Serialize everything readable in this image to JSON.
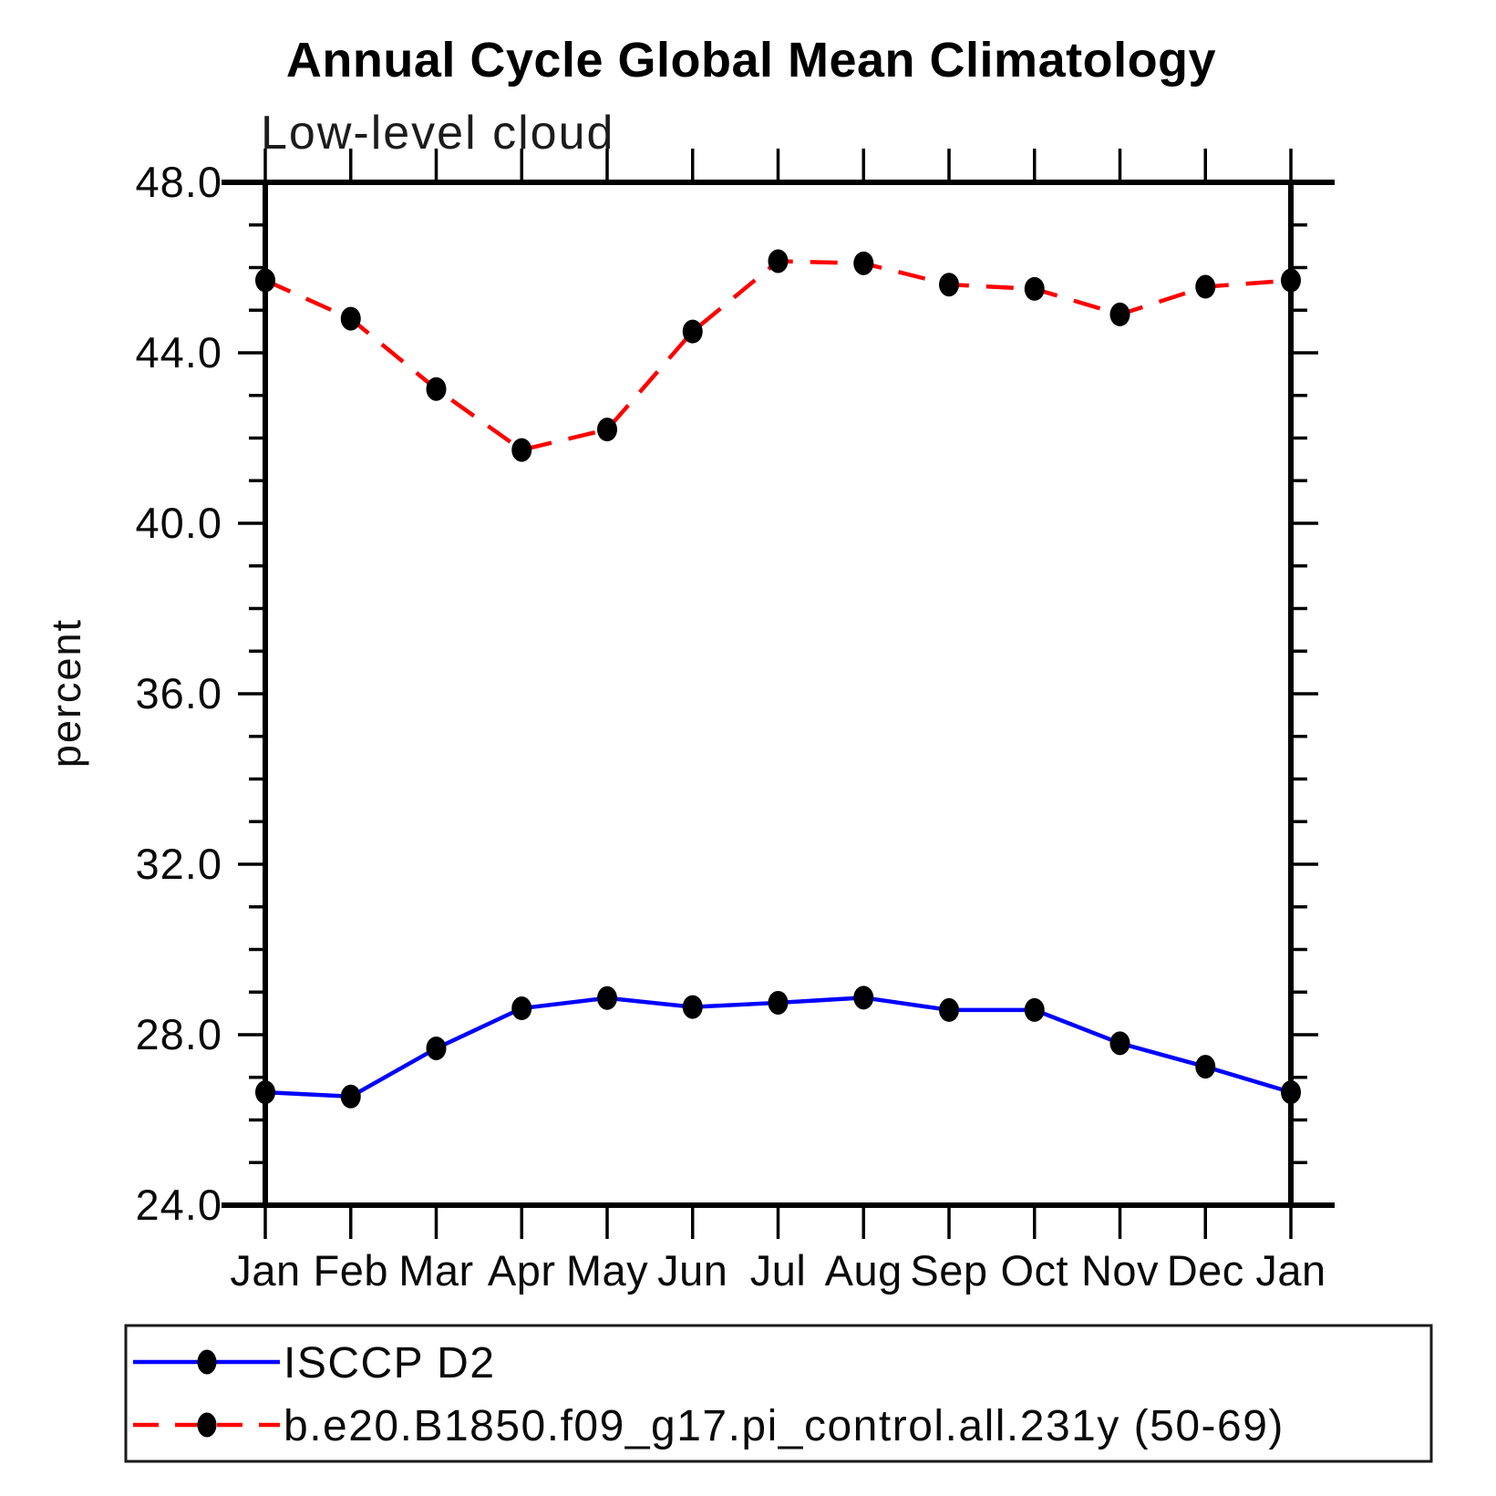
{
  "chart_data": {
    "type": "line",
    "title": "Annual Cycle Global Mean Climatology",
    "subtitle": "Low-level cloud",
    "ylabel": "percent",
    "categories": [
      "Jan",
      "Feb",
      "Mar",
      "Apr",
      "May",
      "Jun",
      "Jul",
      "Aug",
      "Sep",
      "Oct",
      "Nov",
      "Dec",
      "Jan"
    ],
    "ylim": [
      24.0,
      48.0
    ],
    "ytick_major": [
      24.0,
      28.0,
      32.0,
      36.0,
      40.0,
      44.0,
      48.0
    ],
    "ytick_minor_step": 1.0,
    "grid": false,
    "legend_position": "bottom",
    "axis_color": "#000000",
    "marker_shape": "filled-circle",
    "series": [
      {
        "name": "ISCCP D2",
        "color": "#0000ff",
        "line_style": "solid",
        "marker_color": "#000000",
        "values": [
          26.65,
          26.55,
          27.68,
          28.62,
          28.86,
          28.65,
          28.75,
          28.87,
          28.58,
          28.58,
          27.8,
          27.25,
          26.65
        ]
      },
      {
        "name": "b.e20.B1850.f09_g17.pi_control.all.231y (50-69)",
        "color": "#ff0000",
        "line_style": "dashed",
        "marker_color": "#000000",
        "values": [
          45.7,
          44.8,
          43.15,
          41.72,
          42.2,
          44.5,
          46.15,
          46.1,
          45.6,
          45.5,
          44.9,
          45.55,
          45.7
        ]
      }
    ]
  }
}
